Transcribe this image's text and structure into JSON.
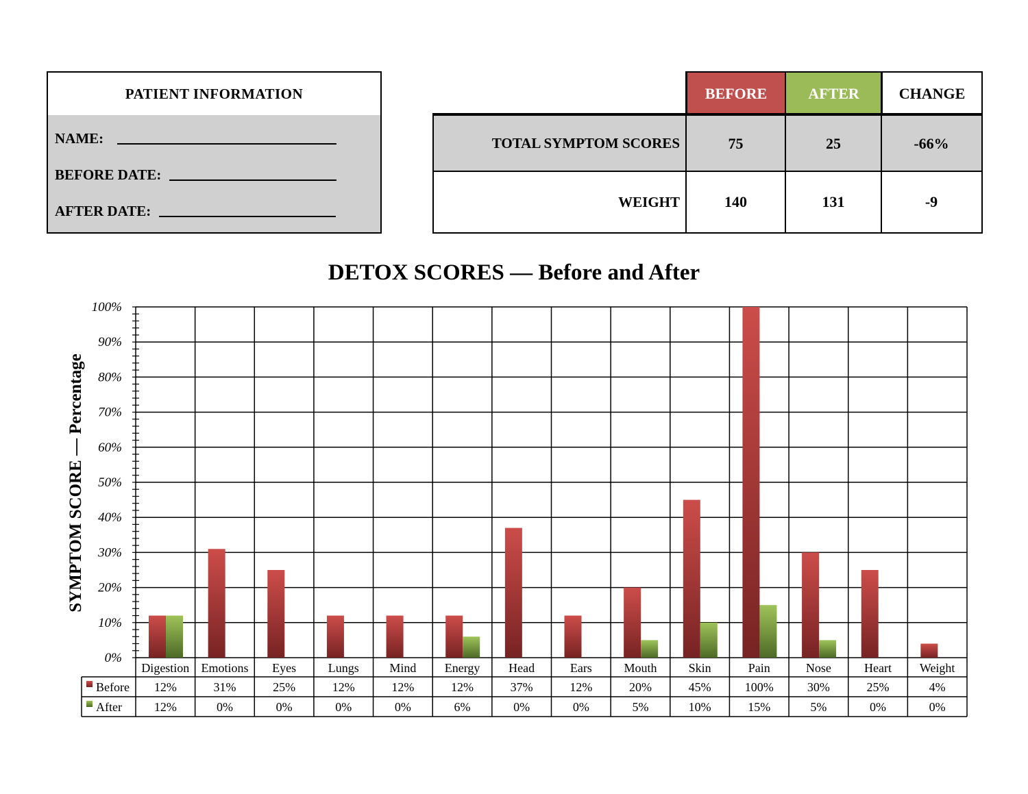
{
  "patient_info": {
    "title": "PATIENT INFORMATION",
    "name_label": "NAME:",
    "before_date_label": "BEFORE DATE:",
    "after_date_label": "AFTER DATE:"
  },
  "summary": {
    "headers": {
      "before": "BEFORE",
      "after": "AFTER",
      "change": "CHANGE"
    },
    "rows": [
      {
        "label": "TOTAL SYMPTOM SCORES",
        "before": "75",
        "after": "25",
        "change": "-66%"
      },
      {
        "label": "WEIGHT",
        "before": "140",
        "after": "131",
        "change": "-9"
      }
    ],
    "colors": {
      "before": "#c0504d",
      "after": "#9bbb59"
    }
  },
  "chart_data": {
    "type": "bar",
    "title": "DETOX SCORES — Before and After",
    "ylabel": "SYMPTOM SCORE — Percentage",
    "xlabel": "",
    "ylim": [
      0,
      100
    ],
    "yticks": [
      "0%",
      "10%",
      "20%",
      "30%",
      "40%",
      "50%",
      "60%",
      "70%",
      "80%",
      "90%",
      "100%"
    ],
    "grid": true,
    "legend": "data-table-left",
    "categories": [
      "Digestion",
      "Emotions",
      "Eyes",
      "Lungs",
      "Mind",
      "Energy",
      "Head",
      "Ears",
      "Mouth",
      "Skin",
      "Pain",
      "Nose",
      "Heart",
      "Weight"
    ],
    "series": [
      {
        "name": "Before",
        "color": "#c0504d",
        "values": [
          12,
          31,
          25,
          12,
          12,
          12,
          37,
          12,
          20,
          45,
          100,
          30,
          25,
          4
        ]
      },
      {
        "name": "After",
        "color": "#9bbb59",
        "values": [
          12,
          0,
          0,
          0,
          0,
          6,
          0,
          0,
          5,
          10,
          15,
          5,
          0,
          0
        ]
      }
    ]
  }
}
